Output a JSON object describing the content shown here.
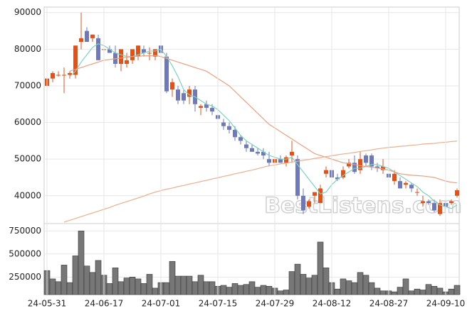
{
  "chart_data": [
    {
      "type": "candlestick",
      "ylim": [
        32400,
        91500
      ],
      "yticks": [
        40000,
        50000,
        60000,
        70000,
        80000,
        90000
      ],
      "grid": true,
      "up_color": "#e0521c",
      "down_color": "#7079b8",
      "watermark": "BestListens.com",
      "open": [
        70000,
        72000,
        73000,
        73000,
        73000,
        73000,
        82000,
        85000,
        83000,
        83000,
        80000,
        80000,
        79000,
        76000,
        76000,
        77000,
        78000,
        80000,
        79000,
        78000,
        81000,
        78000,
        69000,
        69000,
        68000,
        67000,
        69000,
        64000,
        65000,
        64000,
        62000,
        60000,
        59000,
        58000,
        56000,
        54000,
        53000,
        52000,
        52000,
        50000,
        49000,
        50000,
        49000,
        51000,
        50000,
        40000,
        37000,
        40000,
        38000,
        46000,
        47000,
        45000,
        45000,
        48000,
        49000,
        47000,
        51000,
        51000,
        48000,
        47000,
        46000,
        44000,
        44000,
        43000,
        43000,
        41000,
        38000,
        38500,
        38000,
        35000,
        38000,
        38000,
        40000
      ],
      "high": [
        74000,
        74000,
        74000,
        75000,
        74000,
        81000,
        90000,
        86000,
        84000,
        84000,
        81000,
        81000,
        81000,
        80000,
        79000,
        80000,
        81000,
        81000,
        80500,
        80000,
        82000,
        79000,
        72000,
        70000,
        69000,
        70000,
        70000,
        65000,
        66000,
        65000,
        62500,
        61000,
        60000,
        59000,
        56500,
        55000,
        54000,
        53000,
        53000,
        52000,
        51000,
        51000,
        51000,
        55000,
        51000,
        42000,
        39000,
        41000,
        43000,
        48000,
        47500,
        46000,
        48000,
        50000,
        51000,
        52000,
        51500,
        51500,
        49000,
        50000,
        47000,
        47000,
        45000,
        44000,
        43500,
        42000,
        40000,
        39000,
        39000,
        39000,
        39000,
        39000,
        42000
      ],
      "low": [
        67000,
        71000,
        72500,
        68000,
        72000,
        72000,
        80000,
        82000,
        82000,
        77000,
        78000,
        79000,
        75000,
        74000,
        75000,
        76000,
        77000,
        78000,
        77000,
        77000,
        78000,
        68000,
        67000,
        65000,
        65000,
        65000,
        63000,
        62000,
        63000,
        62000,
        60000,
        58000,
        57000,
        55000,
        54000,
        52000,
        52000,
        51000,
        50000,
        48000,
        48500,
        49000,
        48000,
        49000,
        39000,
        35000,
        36500,
        38000,
        38000,
        45000,
        44000,
        44000,
        44500,
        47500,
        46000,
        46000,
        48000,
        47000,
        46500,
        46000,
        44000,
        43000,
        42000,
        42000,
        41000,
        40000,
        37000,
        37500,
        35500,
        34500,
        36500,
        37500,
        39500
      ],
      "close": [
        72000,
        73500,
        73000,
        73000,
        73500,
        81000,
        83000,
        82000,
        84000,
        77000,
        80000,
        79000,
        76000,
        80000,
        77000,
        80000,
        81000,
        79000,
        79000,
        80000,
        79000,
        68500,
        71000,
        66000,
        66000,
        69000,
        65000,
        64500,
        64000,
        63000,
        61000,
        59000,
        58000,
        56000,
        55000,
        53000,
        52000,
        51500,
        51000,
        49000,
        50000,
        49000,
        50500,
        52000,
        40000,
        36000,
        38500,
        41000,
        42000,
        47000,
        45000,
        44500,
        47000,
        49000,
        46500,
        50000,
        49000,
        48000,
        47500,
        48000,
        45000,
        46000,
        42000,
        43500,
        42000,
        41000,
        38500,
        38000,
        36000,
        38000,
        37000,
        38500,
        41500
      ],
      "lines": [
        {
          "color": "#7fd1c0",
          "values": [
            null,
            null,
            null,
            null,
            72500,
            74000,
            76500,
            78500,
            80500,
            81500,
            81000,
            80000,
            79000,
            78500,
            78000,
            78000,
            78500,
            79000,
            79500,
            79500,
            80000,
            78000,
            75500,
            72500,
            69000,
            67500,
            67000,
            66000,
            65000,
            64500,
            63500,
            62000,
            60500,
            58500,
            56500,
            55000,
            54000,
            53000,
            52000,
            51000,
            50500,
            50000,
            50000,
            50500,
            48500,
            46500,
            44500,
            42500,
            40500,
            41000,
            43000,
            44500,
            45500,
            46500,
            47500,
            47500,
            48000,
            48500,
            48500,
            48000,
            47500,
            46500,
            45500,
            44500,
            43500,
            42500,
            41000,
            40000,
            38500,
            37500,
            37000,
            36500,
            37500
          ]
        },
        {
          "color": "#e8a080",
          "values": [
            null,
            null,
            null,
            null,
            74000,
            74500,
            75000,
            75500,
            76000,
            76500,
            77000,
            77200,
            77400,
            77600,
            77800,
            78000,
            78100,
            78200,
            78200,
            78300,
            78000,
            77500,
            77000,
            76500,
            76000,
            75500,
            75000,
            74500,
            74000,
            73000,
            72000,
            71000,
            70000,
            68500,
            67000,
            65500,
            64000,
            62500,
            61000,
            59500,
            58500,
            57500,
            56500,
            55500,
            54500,
            53500,
            52500,
            51500,
            51000,
            50500,
            50000,
            49500,
            49000,
            48800,
            48500,
            48200,
            48000,
            47800,
            47600,
            47300,
            47000,
            46500,
            46000,
            45800,
            45600,
            45500,
            45400,
            45200,
            45000,
            44500,
            44000,
            43700,
            43500
          ]
        },
        {
          "color": "#e8b090",
          "values": [
            null,
            null,
            null,
            32800,
            33300,
            33800,
            34300,
            34800,
            35300,
            35800,
            36300,
            36800,
            37400,
            37900,
            38400,
            38900,
            39400,
            39900,
            40500,
            41000,
            41400,
            41800,
            42100,
            42500,
            42800,
            43200,
            43500,
            43900,
            44200,
            44600,
            44900,
            45300,
            45600,
            46000,
            46300,
            46700,
            47000,
            47400,
            47800,
            48200,
            48400,
            48700,
            48900,
            49200,
            49400,
            49700,
            49900,
            50200,
            50400,
            50700,
            50900,
            51200,
            51400,
            51600,
            51800,
            52100,
            52300,
            52500,
            52800,
            53000,
            53200,
            53300,
            53500,
            53600,
            53800,
            53900,
            54100,
            54200,
            54300,
            54500,
            54600,
            54800,
            54900
          ]
        }
      ]
    },
    {
      "type": "bar",
      "ylim": [
        60000,
        830000
      ],
      "yticks": [
        250000,
        500000,
        750000
      ],
      "grid": true,
      "color": "#777777",
      "categories": [
        "24-05-31",
        null,
        null,
        null,
        null,
        null,
        null,
        null,
        null,
        null,
        "24-06-17",
        null,
        null,
        null,
        null,
        null,
        null,
        null,
        null,
        null,
        "24-07-01",
        null,
        null,
        null,
        null,
        null,
        null,
        null,
        null,
        null,
        "24-07-15",
        null,
        null,
        null,
        null,
        null,
        null,
        null,
        null,
        null,
        "24-07-29",
        null,
        null,
        null,
        null,
        null,
        null,
        null,
        null,
        null,
        "24-08-12",
        null,
        null,
        null,
        null,
        null,
        null,
        null,
        null,
        null,
        "24-08-27",
        null,
        null,
        null,
        null,
        null,
        null,
        null,
        null,
        null,
        "24-09-10",
        null,
        null
      ],
      "values": [
        320000,
        230000,
        200000,
        380000,
        190000,
        480000,
        750000,
        370000,
        300000,
        430000,
        270000,
        180000,
        350000,
        200000,
        240000,
        250000,
        230000,
        180000,
        280000,
        130000,
        190000,
        190000,
        420000,
        260000,
        260000,
        260000,
        200000,
        270000,
        200000,
        200000,
        150000,
        160000,
        140000,
        180000,
        160000,
        170000,
        200000,
        140000,
        160000,
        150000,
        130000,
        100000,
        110000,
        310000,
        390000,
        280000,
        240000,
        270000,
        630000,
        350000,
        190000,
        120000,
        230000,
        210000,
        190000,
        300000,
        270000,
        190000,
        130000,
        100000,
        100000,
        90000,
        140000,
        230000,
        100000,
        120000,
        110000,
        170000,
        150000,
        130000,
        90000,
        120000,
        160000
      ]
    }
  ]
}
